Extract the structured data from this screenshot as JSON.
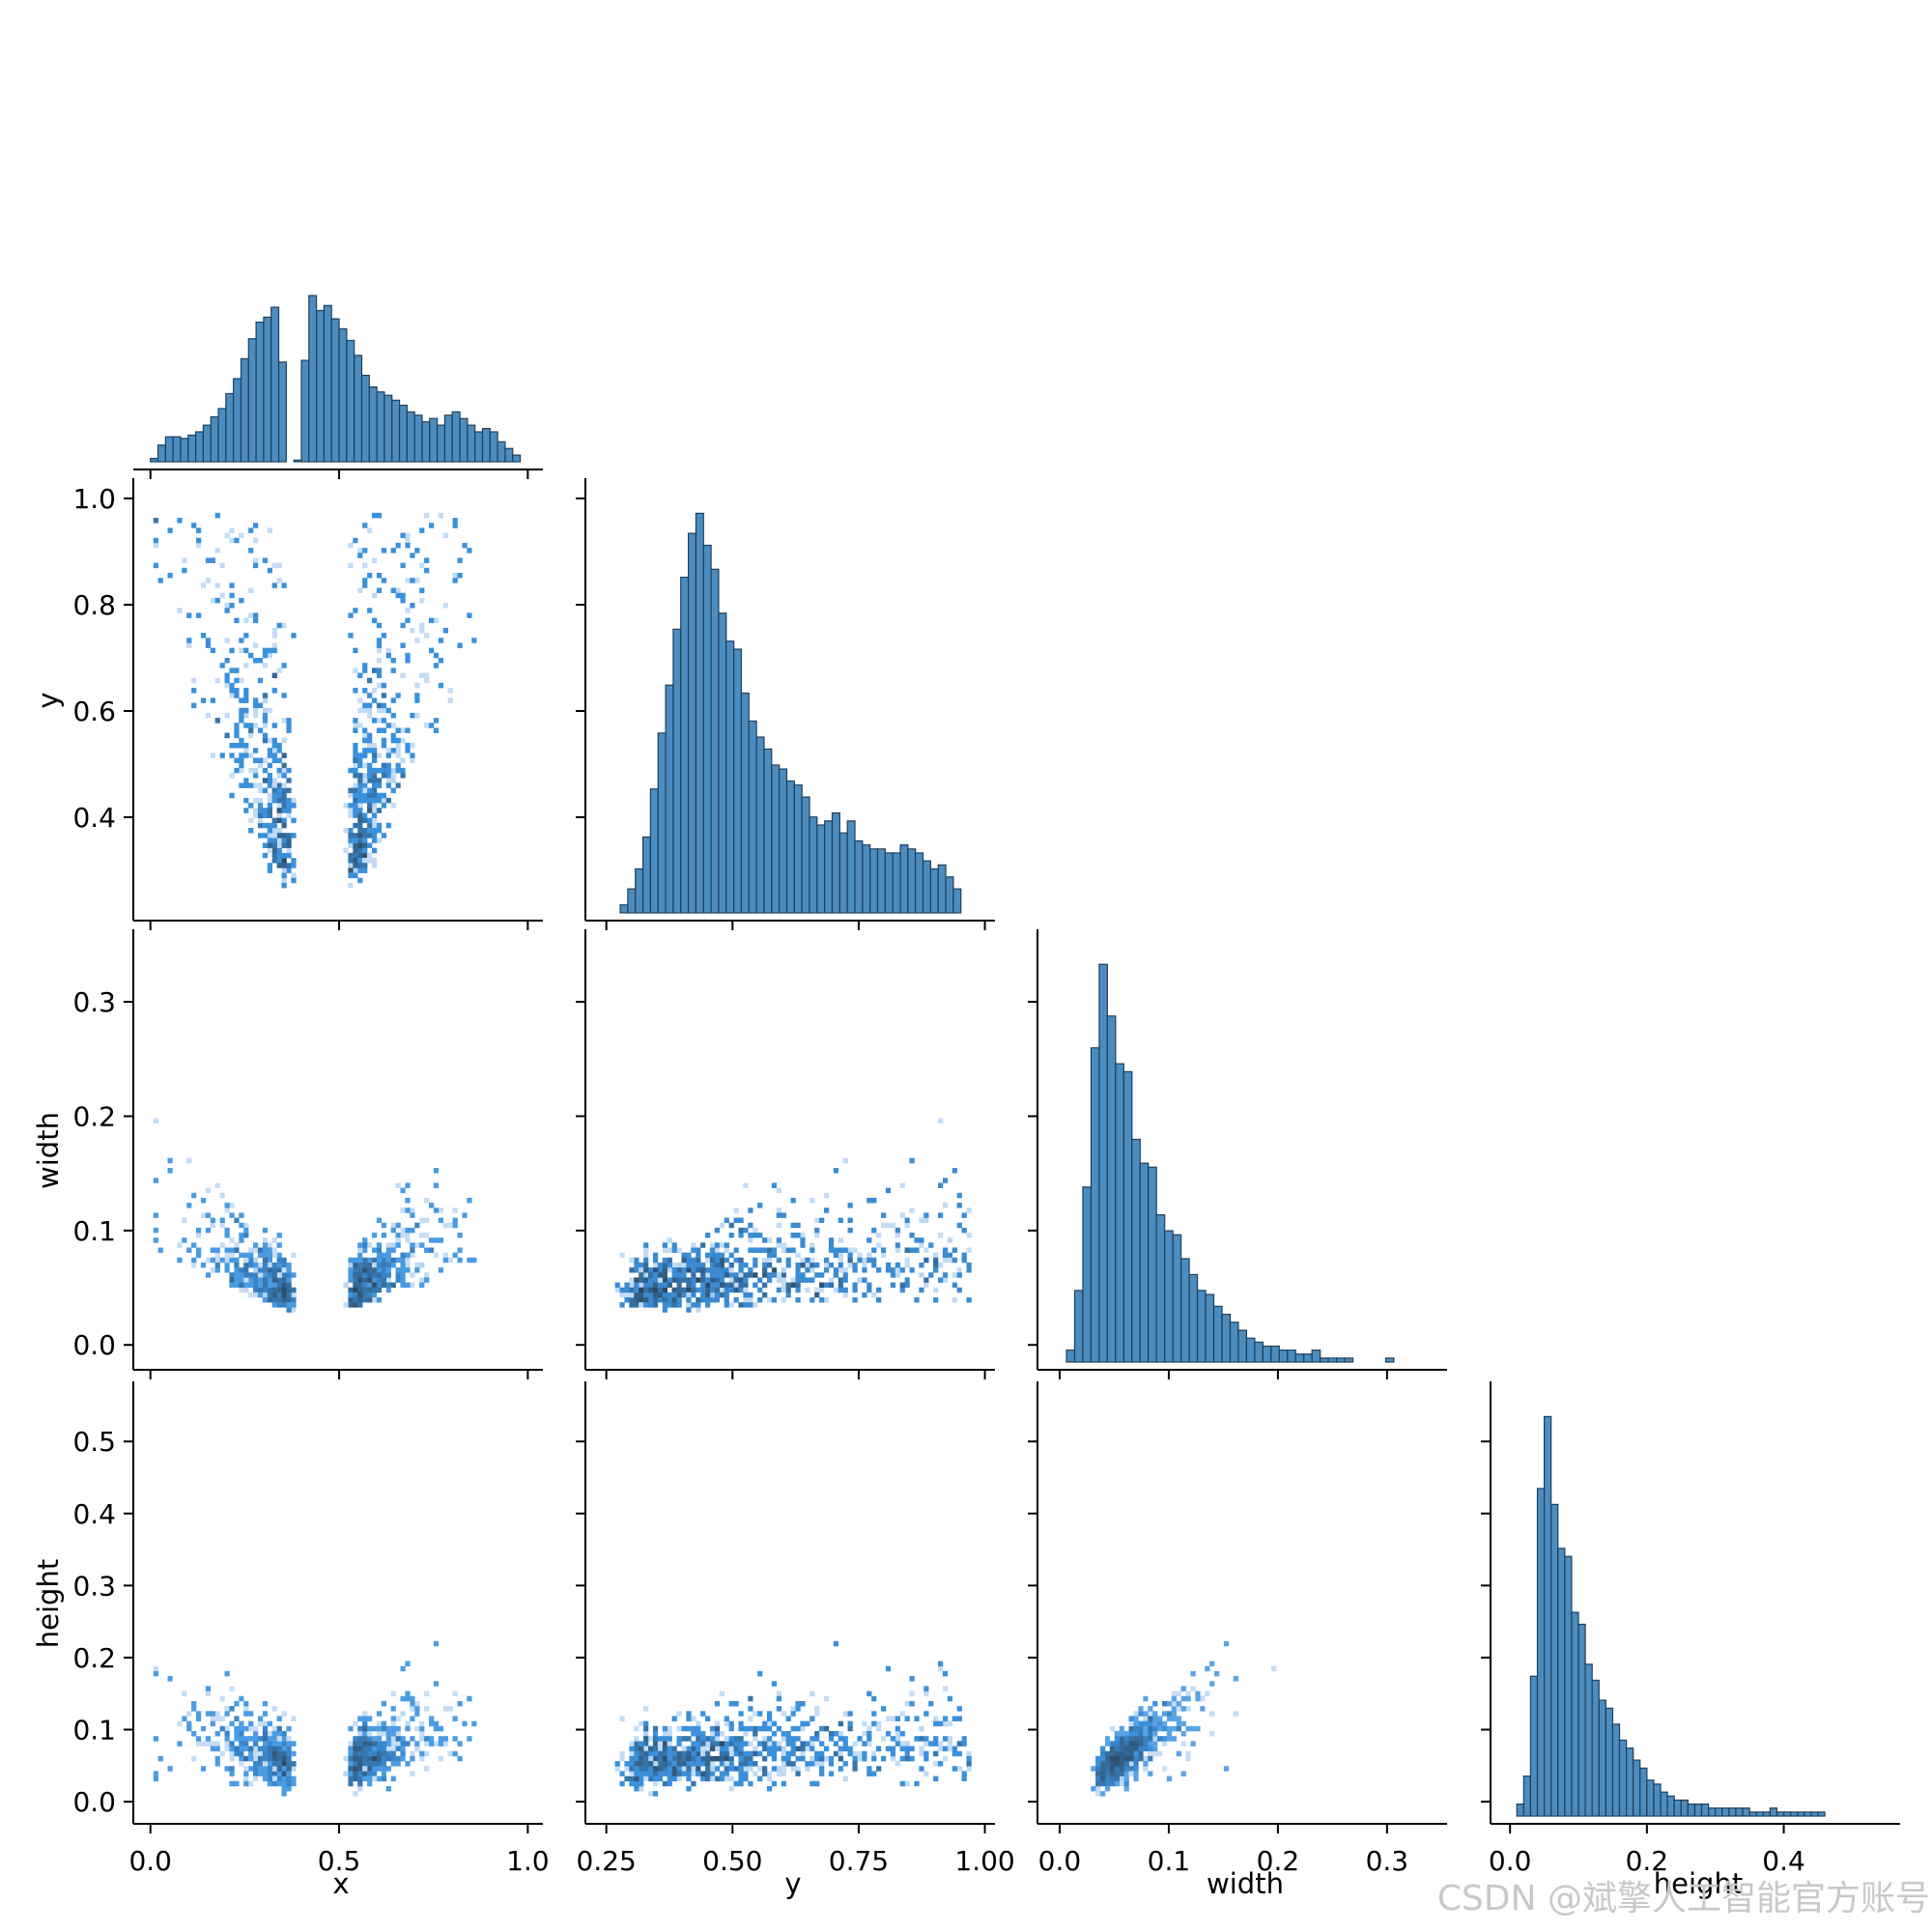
{
  "chart_data": {
    "type": "pairplot",
    "variables": [
      "x",
      "y",
      "width",
      "height"
    ],
    "layout": "corner",
    "diagonal_kind": "histogram",
    "offdiagonal_kind": "2d-histogram",
    "colors": {
      "hist_bar": "#4c8cbe",
      "hist_edge": "#1f3f5b",
      "heat_light": "#c4daf5",
      "heat_mid": "#3b93e0",
      "heat_dark": "#2e4a63",
      "axis": "#000000"
    },
    "axes": {
      "x": {
        "label": "x",
        "lim": [
          -0.03,
          1.04
        ],
        "ticks": [
          0.0,
          0.5,
          1.0
        ],
        "tick_labels": [
          "0.0",
          "0.5",
          "1.0"
        ]
      },
      "y": {
        "label": "y",
        "lim": [
          0.22,
          1.02
        ],
        "ticks": [
          0.25,
          0.5,
          0.75,
          1.0
        ],
        "tick_labels": [
          "0.25",
          "0.50",
          "0.75",
          "1.00"
        ],
        "left_tick_labels": [
          "0.4",
          "0.6",
          "0.8",
          "1.0"
        ],
        "left_ticks": [
          0.4,
          0.6,
          0.8,
          1.0
        ]
      },
      "width": {
        "label": "width",
        "lim": [
          -0.015,
          0.355
        ],
        "ticks": [
          0.0,
          0.1,
          0.2,
          0.3
        ],
        "tick_labels": [
          "0.0",
          "0.1",
          "0.2",
          "0.3"
        ]
      },
      "height": {
        "label": "height",
        "lim": [
          -0.02,
          0.57
        ],
        "ticks": [
          0.0,
          0.2,
          0.4
        ],
        "tick_labels": [
          "0.0",
          "0.2",
          "0.4"
        ],
        "left_ticks": [
          0.0,
          0.1,
          0.2,
          0.3,
          0.4,
          0.5
        ],
        "left_tick_labels": [
          "0.0",
          "0.1",
          "0.2",
          "0.3",
          "0.4",
          "0.5"
        ]
      }
    },
    "histograms": {
      "x": {
        "bins": [
          0.01,
          0.03,
          0.05,
          0.07,
          0.09,
          0.11,
          0.13,
          0.15,
          0.17,
          0.19,
          0.21,
          0.23,
          0.25,
          0.27,
          0.29,
          0.31,
          0.33,
          0.35,
          0.37,
          0.39,
          0.41,
          0.43,
          0.45,
          0.47,
          0.49,
          0.51,
          0.53,
          0.55,
          0.57,
          0.59,
          0.61,
          0.63,
          0.65,
          0.67,
          0.69,
          0.71,
          0.73,
          0.75,
          0.77,
          0.79,
          0.81,
          0.83,
          0.85,
          0.87,
          0.89,
          0.91,
          0.93,
          0.95,
          0.97
        ],
        "counts": [
          0.02,
          0.1,
          0.15,
          0.15,
          0.14,
          0.16,
          0.18,
          0.22,
          0.27,
          0.32,
          0.41,
          0.5,
          0.62,
          0.74,
          0.84,
          0.87,
          0.93,
          0.6,
          0.0,
          0.01,
          0.61,
          1.0,
          0.91,
          0.94,
          0.86,
          0.8,
          0.73,
          0.64,
          0.52,
          0.45,
          0.42,
          0.4,
          0.37,
          0.34,
          0.3,
          0.28,
          0.24,
          0.26,
          0.22,
          0.28,
          0.3,
          0.26,
          0.22,
          0.18,
          0.2,
          0.18,
          0.12,
          0.08,
          0.04
        ]
      },
      "y": {
        "bins": [
          0.285,
          0.3,
          0.315,
          0.33,
          0.345,
          0.36,
          0.375,
          0.39,
          0.405,
          0.42,
          0.435,
          0.45,
          0.465,
          0.48,
          0.495,
          0.51,
          0.525,
          0.54,
          0.555,
          0.57,
          0.585,
          0.6,
          0.615,
          0.63,
          0.645,
          0.66,
          0.675,
          0.69,
          0.705,
          0.72,
          0.735,
          0.75,
          0.765,
          0.78,
          0.795,
          0.81,
          0.825,
          0.84,
          0.855,
          0.87,
          0.885,
          0.9,
          0.915,
          0.93,
          0.945
        ],
        "counts": [
          0.02,
          0.06,
          0.11,
          0.19,
          0.31,
          0.45,
          0.57,
          0.71,
          0.84,
          0.95,
          1.0,
          0.92,
          0.86,
          0.75,
          0.68,
          0.66,
          0.55,
          0.48,
          0.44,
          0.41,
          0.37,
          0.36,
          0.33,
          0.32,
          0.29,
          0.24,
          0.22,
          0.23,
          0.25,
          0.2,
          0.23,
          0.18,
          0.17,
          0.16,
          0.16,
          0.15,
          0.15,
          0.17,
          0.16,
          0.15,
          0.13,
          0.11,
          0.12,
          0.09,
          0.06
        ]
      },
      "width": {
        "bins": [
          0.01,
          0.0175,
          0.025,
          0.0325,
          0.04,
          0.0475,
          0.055,
          0.0625,
          0.07,
          0.0775,
          0.085,
          0.0925,
          0.1,
          0.1075,
          0.115,
          0.1225,
          0.13,
          0.1375,
          0.145,
          0.1525,
          0.16,
          0.1675,
          0.175,
          0.1825,
          0.19,
          0.1975,
          0.205,
          0.2125,
          0.22,
          0.2275,
          0.235,
          0.2425,
          0.25,
          0.2575,
          0.265,
          0.2725,
          0.28,
          0.2875,
          0.295,
          0.3025
        ],
        "counts": [
          0.03,
          0.18,
          0.44,
          0.79,
          1.0,
          0.87,
          0.75,
          0.73,
          0.56,
          0.5,
          0.49,
          0.37,
          0.33,
          0.32,
          0.26,
          0.22,
          0.18,
          0.17,
          0.14,
          0.12,
          0.1,
          0.08,
          0.06,
          0.05,
          0.04,
          0.04,
          0.03,
          0.03,
          0.02,
          0.02,
          0.03,
          0.01,
          0.01,
          0.01,
          0.01,
          0.0,
          0.0,
          0.0,
          0.0,
          0.01
        ]
      },
      "height": {
        "bins": [
          0.015,
          0.025,
          0.035,
          0.045,
          0.055,
          0.065,
          0.075,
          0.085,
          0.095,
          0.105,
          0.115,
          0.125,
          0.135,
          0.145,
          0.155,
          0.165,
          0.175,
          0.185,
          0.195,
          0.205,
          0.215,
          0.225,
          0.235,
          0.245,
          0.255,
          0.265,
          0.275,
          0.285,
          0.295,
          0.305,
          0.315,
          0.325,
          0.335,
          0.345,
          0.355,
          0.365,
          0.375,
          0.385,
          0.395,
          0.405,
          0.415,
          0.425,
          0.435,
          0.445,
          0.455,
          0.465,
          0.475
        ],
        "counts": [
          0.03,
          0.1,
          0.35,
          0.82,
          1.0,
          0.78,
          0.67,
          0.65,
          0.51,
          0.48,
          0.38,
          0.34,
          0.29,
          0.27,
          0.23,
          0.19,
          0.17,
          0.14,
          0.12,
          0.09,
          0.08,
          0.06,
          0.05,
          0.04,
          0.04,
          0.03,
          0.03,
          0.03,
          0.02,
          0.02,
          0.02,
          0.02,
          0.02,
          0.02,
          0.01,
          0.01,
          0.01,
          0.02,
          0.01,
          0.01,
          0.01,
          0.01,
          0.01,
          0.01,
          0.01,
          0.0,
          0.0
        ]
      }
    },
    "density_panels": [
      {
        "x": "x",
        "y": "y",
        "description": "V-shape: dense along two diagonal arms meeting near x≈0.45, y≈0.3"
      },
      {
        "x": "x",
        "y": "width",
        "description": "V-shape: width grows toward x edges"
      },
      {
        "x": "y",
        "y": "width",
        "description": "positive spread, dense near y≈0.45, width≈0.04"
      },
      {
        "x": "x",
        "y": "height",
        "description": "V-shape: height grows toward x edges"
      },
      {
        "x": "y",
        "y": "height",
        "description": "triangle, dense near y≈0.45, height≈0.05, bounded near y≈1"
      },
      {
        "x": "width",
        "y": "height",
        "description": "strong positive correlation, dense near width≈0.05, height≈0.07"
      }
    ]
  },
  "watermark": "CSDN @斌擎人工智能官方账号"
}
